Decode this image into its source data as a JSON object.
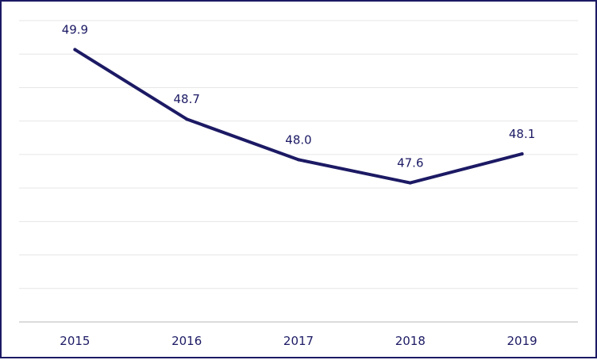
{
  "chart_data": {
    "type": "line",
    "title": "",
    "xlabel": "",
    "ylabel": "",
    "categories": [
      "2015",
      "2016",
      "2017",
      "2018",
      "2019"
    ],
    "series": [
      {
        "values": [
          49.9,
          48.7,
          48.0,
          47.6,
          48.1
        ],
        "data_labels": [
          "49.9",
          "48.7",
          "48.0",
          "47.6",
          "48.1"
        ]
      }
    ],
    "ylim": [
      45.2,
      50.4
    ],
    "y_tick_labels_shown": false,
    "grid": true,
    "legend": "none",
    "colors": {
      "line": "#1c1a64",
      "text": "#1c1a64",
      "grid": "#e6e6e6",
      "border": "#1c1a64"
    }
  }
}
